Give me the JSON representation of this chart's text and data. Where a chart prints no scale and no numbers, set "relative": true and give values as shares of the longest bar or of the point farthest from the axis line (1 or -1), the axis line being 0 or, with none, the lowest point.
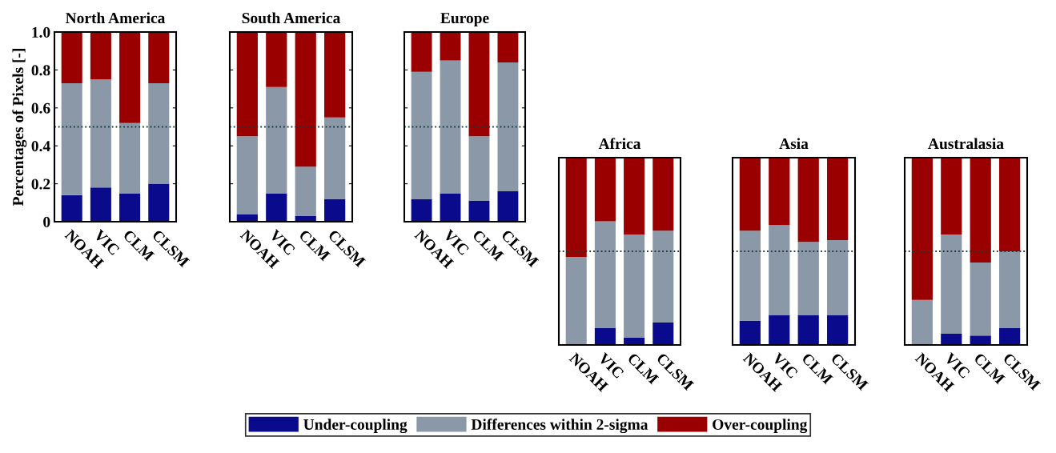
{
  "chart_data": [
    {
      "type": "bar",
      "title": "North America",
      "ylabel": "Percentages of Pixels [-]",
      "stacked": true,
      "categories": [
        "NOAH",
        "VIC",
        "CLM",
        "CLSM"
      ],
      "ylim": [
        0,
        1
      ],
      "yticks": [
        0,
        0.2,
        0.4,
        0.6,
        0.8,
        {
          "value": 1,
          "label": "1.0"
        }
      ],
      "legend": "bottom",
      "ref_lines": [
        {
          "axis": "y",
          "value": 0.5,
          "line_style": "dotted",
          "color": "#1a3a3a"
        }
      ],
      "series": [
        {
          "name": "Under-coupling",
          "color": "#0a0a8c",
          "values": [
            0.14,
            0.18,
            0.15,
            0.2
          ]
        },
        {
          "name": "Differences within 2-sigma",
          "color": "#8a98a8",
          "values": [
            0.59,
            0.57,
            0.37,
            0.53
          ]
        },
        {
          "name": "Over-coupling",
          "color": "#9a0000",
          "values": [
            0.27,
            0.25,
            0.48,
            0.27
          ]
        }
      ]
    },
    {
      "type": "bar",
      "title": "South America",
      "stacked": true,
      "categories": [
        "NOAH",
        "VIC",
        "CLM",
        "CLSM"
      ],
      "ylim": [
        0,
        1
      ],
      "yticks": [
        0,
        0.2,
        0.4,
        0.6,
        0.8,
        1
      ],
      "tick_labels": "x",
      "ref_lines": [
        {
          "axis": "y",
          "value": 0.5,
          "line_style": "dotted",
          "color": "#1a3a3a"
        }
      ],
      "series": [
        {
          "color": "#0a0a8c",
          "values": [
            0.04,
            0.15,
            0.03,
            0.12
          ]
        },
        {
          "color": "#8a98a8",
          "values": [
            0.41,
            0.56,
            0.26,
            0.43
          ]
        },
        {
          "color": "#9a0000",
          "values": [
            0.55,
            0.29,
            0.71,
            0.45
          ]
        }
      ]
    },
    {
      "type": "bar",
      "title": "Europe",
      "stacked": true,
      "categories": [
        "NOAH",
        "VIC",
        "CLM",
        "CLSM"
      ],
      "ylim": [
        0,
        1
      ],
      "yticks": [
        0,
        0.2,
        0.4,
        0.6,
        0.8,
        1
      ],
      "tick_labels": "x",
      "ref_lines": [
        {
          "axis": "y",
          "value": 0.5,
          "line_style": "dotted",
          "color": "#1a3a3a"
        }
      ],
      "series": [
        {
          "color": "#0a0a8c",
          "values": [
            0.12,
            0.15,
            0.11,
            0.16
          ]
        },
        {
          "color": "#8a98a8",
          "values": [
            0.67,
            0.7,
            0.34,
            0.68
          ]
        },
        {
          "color": "#9a0000",
          "values": [
            0.21,
            0.15,
            0.55,
            0.16
          ]
        }
      ]
    },
    {
      "type": "bar",
      "title": "Africa",
      "stacked": true,
      "relative": true,
      "categories": [
        "NOAH",
        "VIC",
        "CLM",
        "CLSM"
      ],
      "tick_labels": "x",
      "ref_lines": [
        {
          "axis": "y",
          "value": 0.5,
          "line_style": "dotted",
          "color": "#1a3a3a"
        }
      ],
      "series": [
        {
          "color": "#0a0a8c",
          "values": [
            null,
            0.09,
            0.04,
            0.12
          ]
        },
        {
          "color": "#8a98a8",
          "values": [
            0.47,
            0.57,
            0.55,
            0.49
          ]
        },
        {
          "color": "#9a0000",
          "values": [
            0.53,
            0.34,
            0.41,
            0.39
          ]
        }
      ]
    },
    {
      "type": "bar",
      "title": "Asia",
      "stacked": true,
      "relative": true,
      "categories": [
        "NOAH",
        "VIC",
        "CLM",
        "CLSM"
      ],
      "tick_labels": "x",
      "ref_lines": [
        {
          "axis": "y",
          "value": 0.5,
          "line_style": "dotted",
          "color": "#1a3a3a"
        }
      ],
      "series": [
        {
          "color": "#0a0a8c",
          "values": [
            0.13,
            0.16,
            0.16,
            0.16
          ]
        },
        {
          "color": "#8a98a8",
          "values": [
            0.48,
            0.48,
            0.39,
            0.4
          ]
        },
        {
          "color": "#9a0000",
          "values": [
            0.39,
            0.36,
            0.45,
            0.44
          ]
        }
      ]
    },
    {
      "type": "bar",
      "title": "Australasia",
      "stacked": true,
      "relative": true,
      "categories": [
        "NOAH",
        "VIC",
        "CLM",
        "CLSM"
      ],
      "tick_labels": "x",
      "ref_lines": [
        {
          "axis": "y",
          "value": 0.5,
          "line_style": "dotted",
          "color": "#1a3a3a"
        }
      ],
      "series": [
        {
          "color": "#0a0a8c",
          "values": [
            null,
            0.06,
            0.05,
            0.09
          ]
        },
        {
          "color": "#8a98a8",
          "values": [
            0.24,
            0.53,
            0.39,
            0.41
          ]
        },
        {
          "color": "#9a0000",
          "values": [
            0.76,
            0.41,
            0.56,
            0.5
          ]
        }
      ]
    }
  ]
}
